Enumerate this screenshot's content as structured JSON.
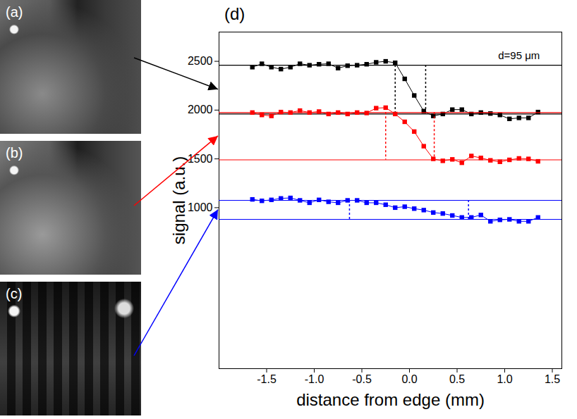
{
  "image_panels": [
    {
      "label": "(a)"
    },
    {
      "label": "(b)"
    },
    {
      "label": "(c)"
    }
  ],
  "chart_data": {
    "type": "scatter",
    "title": "(d)",
    "x_label": "distance from edge (mm)",
    "y_label": "signal (a.u.)",
    "xlim": [
      -2.0,
      1.6
    ],
    "xticks": [
      -1.5,
      {
        "value": -1,
        "label": "-1.0"
      },
      -0.5,
      {
        "value": 0,
        "label": "0.0"
      },
      0.5,
      {
        "value": 1,
        "label": "1.0"
      },
      1.5
    ],
    "ylim": [
      -650,
      2800
    ],
    "yticks": [
      1000,
      1500,
      2000,
      2500
    ],
    "grid": false,
    "annotations": [
      {
        "text": "d=95 μm",
        "x": 1.15,
        "y": 2560
      }
    ],
    "x": [
      -1.65,
      -1.55,
      -1.45,
      -1.35,
      -1.25,
      -1.15,
      -1.05,
      -0.95,
      -0.85,
      -0.75,
      -0.65,
      -0.55,
      -0.45,
      -0.35,
      -0.25,
      -0.15,
      -0.05,
      0.05,
      0.15,
      0.25,
      0.35,
      0.45,
      0.55,
      0.65,
      0.75,
      0.85,
      0.95,
      1.05,
      1.15,
      1.25,
      1.35
    ],
    "series": [
      {
        "color": "#000000",
        "marker": "square",
        "line_style": "solid",
        "values": [
          2440,
          2475,
          2440,
          2420,
          2440,
          2475,
          2460,
          2470,
          2475,
          2430,
          2455,
          2460,
          2470,
          2490,
          2500,
          2485,
          2320,
          2150,
          1990,
          1940,
          1960,
          2005,
          2005,
          1960,
          1975,
          1965,
          1950,
          1910,
          1920,
          1920,
          1980
        ],
        "levels": [
          2460,
          1960
        ],
        "edges": [
          -0.15,
          0.17
        ]
      },
      {
        "color": "#ff0000",
        "marker": "square",
        "line_style": "solid",
        "values": [
          1975,
          1950,
          1940,
          1980,
          1975,
          1995,
          1975,
          1985,
          1960,
          1975,
          1960,
          1975,
          1970,
          2020,
          2025,
          1960,
          1880,
          1780,
          1630,
          1500,
          1480,
          1495,
          1460,
          1530,
          1510,
          1485,
          1470,
          1490,
          1505,
          1500,
          1475
        ],
        "levels": [
          1975,
          1490
        ],
        "edges": [
          -0.25,
          0.26
        ]
      },
      {
        "color": "#0000ff",
        "marker": "square",
        "line_style": "solid",
        "values": [
          1085,
          1070,
          1080,
          1095,
          1100,
          1075,
          1050,
          1080,
          1060,
          1050,
          1075,
          1075,
          1050,
          1050,
          1030,
          1000,
          1010,
          990,
          975,
          950,
          940,
          920,
          900,
          900,
          925,
          860,
          875,
          880,
          860,
          860,
          900
        ],
        "levels": [
          1075,
          880
        ],
        "edges": [
          -0.63,
          0.62
        ]
      }
    ]
  }
}
